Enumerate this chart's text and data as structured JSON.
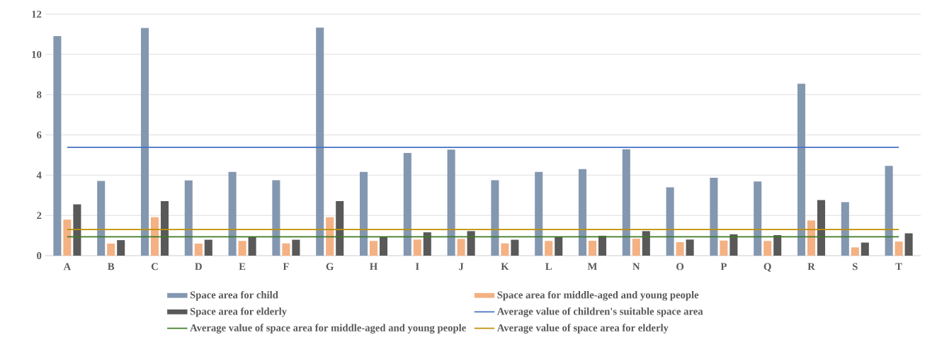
{
  "chart_data": {
    "type": "bar",
    "categories": [
      "A",
      "B",
      "C",
      "D",
      "E",
      "F",
      "G",
      "H",
      "I",
      "J",
      "K",
      "L",
      "M",
      "N",
      "O",
      "P",
      "Q",
      "R",
      "S",
      "T"
    ],
    "series": [
      {
        "name": "Space area for child",
        "color": "#8497b0",
        "values": [
          10.91,
          3.71,
          11.31,
          3.74,
          4.16,
          3.75,
          11.33,
          4.16,
          5.1,
          5.27,
          3.75,
          4.16,
          4.3,
          5.29,
          3.4,
          3.87,
          3.69,
          8.54,
          2.66,
          4.46
        ]
      },
      {
        "name": "Space area for middle-aged and young people",
        "color": "#f4b183",
        "values": [
          1.79,
          0.6,
          1.91,
          0.6,
          0.73,
          0.61,
          1.91,
          0.73,
          0.8,
          0.83,
          0.61,
          0.73,
          0.74,
          0.84,
          0.67,
          0.75,
          0.73,
          1.75,
          0.41,
          0.7
        ]
      },
      {
        "name": "Space area for elderly",
        "color": "#595959",
        "values": [
          2.55,
          0.77,
          2.71,
          0.79,
          0.94,
          0.79,
          2.71,
          0.94,
          1.16,
          1.22,
          0.79,
          0.94,
          0.99,
          1.22,
          0.8,
          1.06,
          1.02,
          2.76,
          0.65,
          1.11
        ]
      },
      {
        "name": "Average value of children's suitable space area",
        "type": "line",
        "color": "#4472c4",
        "values": [
          5.38,
          5.38,
          5.38,
          5.38,
          5.38,
          5.38,
          5.38,
          5.38,
          5.38,
          5.38,
          5.38,
          5.38,
          5.38,
          5.38,
          5.38,
          5.38,
          5.38,
          5.38,
          5.38,
          5.38
        ]
      },
      {
        "name": "Average value of space area for middle-aged and young people",
        "type": "line",
        "color": "#3d7a22",
        "values": [
          0.94,
          0.94,
          0.94,
          0.94,
          0.94,
          0.94,
          0.94,
          0.94,
          0.94,
          0.94,
          0.94,
          0.94,
          0.94,
          0.94,
          0.94,
          0.94,
          0.94,
          0.94,
          0.94,
          0.94
        ]
      },
      {
        "name": "Average value of space area for elderly",
        "type": "line",
        "color": "#bf8f00",
        "values": [
          1.3,
          1.3,
          1.3,
          1.3,
          1.3,
          1.3,
          1.3,
          1.3,
          1.3,
          1.3,
          1.3,
          1.3,
          1.3,
          1.3,
          1.3,
          1.3,
          1.3,
          1.3,
          1.3,
          1.3
        ]
      }
    ],
    "ylim": [
      0,
      12
    ],
    "yticks": [
      0,
      2,
      4,
      6,
      8,
      10,
      12
    ],
    "grid": "y",
    "legend": "bottom"
  }
}
